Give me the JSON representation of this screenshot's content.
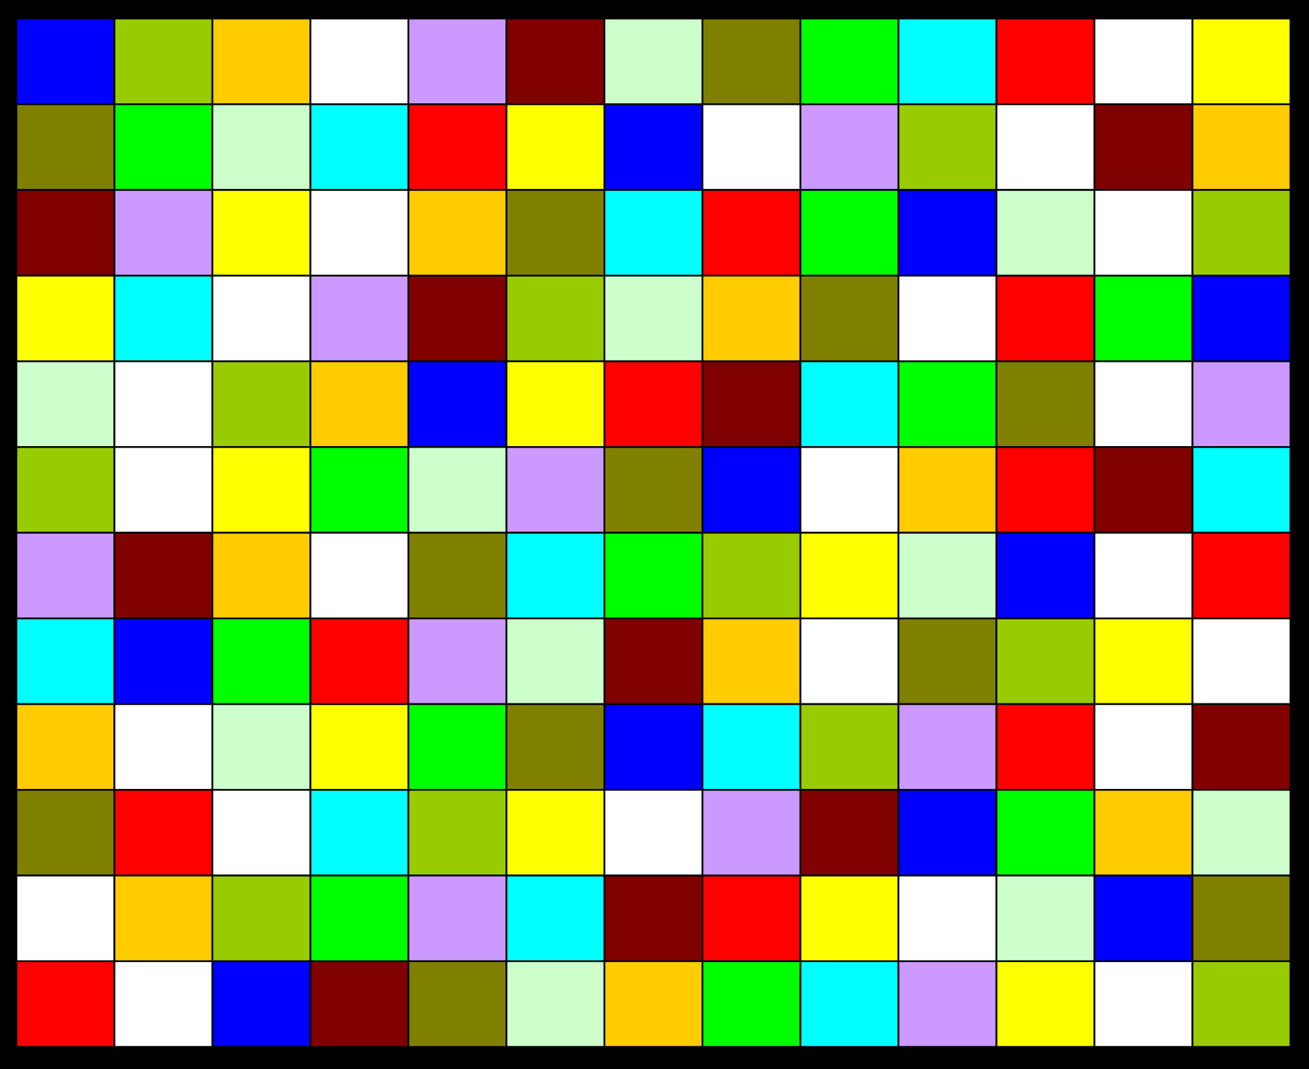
{
  "grid": {
    "rows": [
      [
        "#0000ff",
        "#99cc00",
        "#ffcc00",
        "#ffffff",
        "#cc99ff",
        "#800000",
        "#ccffcc",
        "#808000",
        "#00ff00",
        "#00ffff",
        "#ff0000",
        "#ffffff",
        "#ffff00"
      ],
      [
        "#808000",
        "#00ff00",
        "#ccffcc",
        "#00ffff",
        "#ff0000",
        "#ffff00",
        "#0000ff",
        "#ffffff",
        "#cc99ff",
        "#99cc00",
        "#ffffff",
        "#800000",
        "#ffcc00"
      ],
      [
        "#800000",
        "#cc99ff",
        "#ffff00",
        "#ffffff",
        "#ffcc00",
        "#808000",
        "#00ffff",
        "#ff0000",
        "#00ff00",
        "#0000ff",
        "#ccffcc",
        "#ffffff",
        "#99cc00"
      ],
      [
        "#ffff00",
        "#00ffff",
        "#ffffff",
        "#cc99ff",
        "#800000",
        "#99cc00",
        "#ccffcc",
        "#ffcc00",
        "#808000",
        "#ffffff",
        "#ff0000",
        "#00ff00",
        "#0000ff"
      ],
      [
        "#ccffcc",
        "#ffffff",
        "#99cc00",
        "#ffcc00",
        "#0000ff",
        "#ffff00",
        "#ff0000",
        "#800000",
        "#00ffff",
        "#00ff00",
        "#808000",
        "#ffffff",
        "#cc99ff"
      ],
      [
        "#99cc00",
        "#ffffff",
        "#ffff00",
        "#00ff00",
        "#ccffcc",
        "#cc99ff",
        "#808000",
        "#0000ff",
        "#ffffff",
        "#ffcc00",
        "#ff0000",
        "#800000",
        "#00ffff"
      ],
      [
        "#cc99ff",
        "#800000",
        "#ffcc00",
        "#ffffff",
        "#808000",
        "#00ffff",
        "#00ff00",
        "#99cc00",
        "#ffff00",
        "#ccffcc",
        "#0000ff",
        "#ffffff",
        "#ff0000"
      ],
      [
        "#00ffff",
        "#0000ff",
        "#00ff00",
        "#ff0000",
        "#cc99ff",
        "#ccffcc",
        "#800000",
        "#ffcc00",
        "#ffffff",
        "#808000",
        "#99cc00",
        "#ffff00",
        "#ffffff"
      ],
      [
        "#ffcc00",
        "#ffffff",
        "#ccffcc",
        "#ffff00",
        "#00ff00",
        "#808000",
        "#0000ff",
        "#00ffff",
        "#99cc00",
        "#cc99ff",
        "#ff0000",
        "#ffffff",
        "#800000"
      ],
      [
        "#808000",
        "#ff0000",
        "#ffffff",
        "#00ffff",
        "#99cc00",
        "#ffff00",
        "#ffffff",
        "#cc99ff",
        "#800000",
        "#0000ff",
        "#00ff00",
        "#ffcc00",
        "#ccffcc"
      ],
      [
        "#ffffff",
        "#ffcc00",
        "#99cc00",
        "#00ff00",
        "#cc99ff",
        "#00ffff",
        "#800000",
        "#ff0000",
        "#ffff00",
        "#ffffff",
        "#ccffcc",
        "#0000ff",
        "#808000"
      ],
      [
        "#ff0000",
        "#ffffff",
        "#0000ff",
        "#800000",
        "#808000",
        "#ccffcc",
        "#ffcc00",
        "#00ff00",
        "#00ffff",
        "#cc99ff",
        "#ffff00",
        "#ffffff",
        "#99cc00"
      ]
    ]
  }
}
